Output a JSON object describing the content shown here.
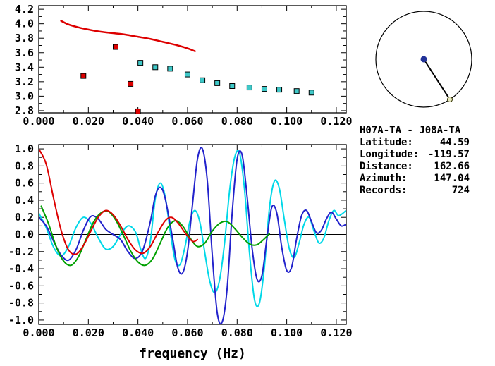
{
  "info_panel": {
    "station_pair": "H07A-TA - J08A-TA",
    "fields": [
      {
        "label": "Latitude:",
        "value": "44.59"
      },
      {
        "label": "Longitude:",
        "value": "-119.57"
      },
      {
        "label": "Distance:",
        "value": "162.66"
      },
      {
        "label": "Azimuth:",
        "value": "147.04"
      },
      {
        "label": "Records:",
        "value": "724"
      }
    ]
  },
  "compass": {
    "azimuth_deg": 147.04,
    "center_color": "#223399",
    "edge_fill": "#e8e8c0",
    "edge_stroke": "#333300",
    "line_color": "#000000"
  },
  "colors": {
    "red": "#dd0000",
    "green": "#00a000",
    "dark_blue": "#2222cc",
    "bright_cyan": "#00d8e8",
    "teal_marker": "#3fc8c8",
    "axis": "#000000",
    "background": "#ffffff"
  },
  "chart_data": [
    {
      "id": "dispersion",
      "type": "line+scatter",
      "title": "",
      "xlabel": "",
      "ylabel": "",
      "xlim": [
        0,
        0.124
      ],
      "ylim": [
        2.77,
        4.25
      ],
      "xticks": [
        0,
        0.02,
        0.04,
        0.06,
        0.08,
        0.1,
        0.12
      ],
      "xtick_labels": [
        "0.000",
        "0.020",
        "0.040",
        "0.060",
        "0.080",
        "0.100",
        "0.120"
      ],
      "yticks": [
        2.8,
        3.0,
        3.2,
        3.4,
        3.6,
        3.8,
        4.0,
        4.2
      ],
      "ytick_labels": [
        "2.8",
        "3.0",
        "3.2",
        "3.4",
        "3.6",
        "3.8",
        "4.0",
        "4.2"
      ],
      "zero_line": false,
      "series": [
        {
          "name": "reference-dispersion-curve",
          "type": "line",
          "color": "#dd0000",
          "width": 2.5,
          "points": [
            [
              0.009,
              4.04
            ],
            [
              0.012,
              3.99
            ],
            [
              0.016,
              3.95
            ],
            [
              0.02,
              3.92
            ],
            [
              0.025,
              3.89
            ],
            [
              0.03,
              3.87
            ],
            [
              0.035,
              3.85
            ],
            [
              0.04,
              3.82
            ],
            [
              0.045,
              3.79
            ],
            [
              0.05,
              3.75
            ],
            [
              0.055,
              3.71
            ],
            [
              0.06,
              3.66
            ],
            [
              0.063,
              3.62
            ]
          ]
        },
        {
          "name": "rejected-picks",
          "type": "scatter",
          "color": "#dd0000",
          "points": [
            [
              0.018,
              3.28
            ],
            [
              0.031,
              3.68
            ],
            [
              0.037,
              3.17
            ],
            [
              0.04,
              2.79
            ]
          ]
        },
        {
          "name": "accepted-picks",
          "type": "scatter",
          "color": "#3fc8c8",
          "points": [
            [
              0.041,
              3.46
            ],
            [
              0.047,
              3.4
            ],
            [
              0.053,
              3.38
            ],
            [
              0.06,
              3.3
            ],
            [
              0.066,
              3.22
            ],
            [
              0.072,
              3.18
            ],
            [
              0.078,
              3.14
            ],
            [
              0.085,
              3.12
            ],
            [
              0.091,
              3.1
            ],
            [
              0.097,
              3.09
            ],
            [
              0.104,
              3.07
            ],
            [
              0.11,
              3.05
            ]
          ]
        }
      ]
    },
    {
      "id": "spectra",
      "type": "line",
      "title": "",
      "xlabel": "frequency (Hz)",
      "ylabel": "",
      "xlim": [
        0,
        0.124
      ],
      "ylim": [
        -1.05,
        1.05
      ],
      "xticks": [
        0,
        0.02,
        0.04,
        0.06,
        0.08,
        0.1,
        0.12
      ],
      "xtick_labels": [
        "0.000",
        "0.020",
        "0.040",
        "0.060",
        "0.080",
        "0.100",
        "0.120"
      ],
      "yticks": [
        -1.0,
        -0.8,
        -0.6,
        -0.4,
        -0.2,
        0.0,
        0.2,
        0.4,
        0.6,
        0.8,
        1.0
      ],
      "ytick_labels": [
        "-1.0",
        "-0.8",
        "-0.6",
        "-0.4",
        "-0.2",
        "0.0",
        "0.2",
        "0.4",
        "0.6",
        "0.8",
        "1.0"
      ],
      "zero_line": true,
      "series": [
        {
          "name": "cyan-trace",
          "type": "line",
          "color": "#00d8e8",
          "width": 2,
          "points": [
            [
              0,
              0.25
            ],
            [
              0.003,
              0.08
            ],
            [
              0.006,
              -0.15
            ],
            [
              0.009,
              -0.25
            ],
            [
              0.012,
              -0.14
            ],
            [
              0.015,
              0.08
            ],
            [
              0.018,
              0.2
            ],
            [
              0.021,
              0.13
            ],
            [
              0.024,
              -0.04
            ],
            [
              0.027,
              -0.17
            ],
            [
              0.03,
              -0.14
            ],
            [
              0.033,
              0
            ],
            [
              0.036,
              0.1
            ],
            [
              0.039,
              0.03
            ],
            [
              0.041,
              -0.16
            ],
            [
              0.043,
              -0.28
            ],
            [
              0.045,
              -0.08
            ],
            [
              0.047,
              0.42
            ],
            [
              0.049,
              0.6
            ],
            [
              0.051,
              0.44
            ],
            [
              0.053,
              0.04
            ],
            [
              0.055,
              -0.3
            ],
            [
              0.057,
              -0.35
            ],
            [
              0.059,
              -0.14
            ],
            [
              0.061,
              0.16
            ],
            [
              0.063,
              0.28
            ],
            [
              0.065,
              0.14
            ],
            [
              0.067,
              -0.22
            ],
            [
              0.069,
              -0.55
            ],
            [
              0.071,
              -0.68
            ],
            [
              0.073,
              -0.52
            ],
            [
              0.075,
              -0.08
            ],
            [
              0.077,
              0.52
            ],
            [
              0.079,
              0.9
            ],
            [
              0.081,
              0.95
            ],
            [
              0.083,
              0.52
            ],
            [
              0.085,
              -0.22
            ],
            [
              0.087,
              -0.76
            ],
            [
              0.089,
              -0.8
            ],
            [
              0.091,
              -0.38
            ],
            [
              0.093,
              0.3
            ],
            [
              0.095,
              0.62
            ],
            [
              0.097,
              0.54
            ],
            [
              0.099,
              0.18
            ],
            [
              0.101,
              -0.16
            ],
            [
              0.103,
              -0.27
            ],
            [
              0.105,
              -0.1
            ],
            [
              0.107,
              0.12
            ],
            [
              0.109,
              0.2
            ],
            [
              0.111,
              0.04
            ],
            [
              0.113,
              -0.1
            ],
            [
              0.115,
              -0.04
            ],
            [
              0.117,
              0.16
            ],
            [
              0.119,
              0.28
            ],
            [
              0.121,
              0.22
            ],
            [
              0.124,
              0.28
            ]
          ]
        },
        {
          "name": "blue-trace",
          "type": "line",
          "color": "#2222cc",
          "width": 2,
          "points": [
            [
              0,
              0.2
            ],
            [
              0.003,
              0.1
            ],
            [
              0.006,
              -0.08
            ],
            [
              0.009,
              -0.24
            ],
            [
              0.012,
              -0.3
            ],
            [
              0.015,
              -0.18
            ],
            [
              0.018,
              0.05
            ],
            [
              0.021,
              0.21
            ],
            [
              0.024,
              0.18
            ],
            [
              0.027,
              0.06
            ],
            [
              0.03,
              0
            ],
            [
              0.033,
              -0.06
            ],
            [
              0.036,
              -0.2
            ],
            [
              0.039,
              -0.28
            ],
            [
              0.042,
              -0.18
            ],
            [
              0.045,
              0.15
            ],
            [
              0.047,
              0.45
            ],
            [
              0.049,
              0.55
            ],
            [
              0.051,
              0.42
            ],
            [
              0.054,
              -0.05
            ],
            [
              0.056,
              -0.38
            ],
            [
              0.058,
              -0.45
            ],
            [
              0.06,
              -0.2
            ],
            [
              0.062,
              0.35
            ],
            [
              0.064,
              0.88
            ],
            [
              0.066,
              1.0
            ],
            [
              0.068,
              0.62
            ],
            [
              0.07,
              -0.25
            ],
            [
              0.072,
              -0.92
            ],
            [
              0.074,
              -1.02
            ],
            [
              0.076,
              -0.62
            ],
            [
              0.078,
              0.25
            ],
            [
              0.08,
              0.88
            ],
            [
              0.082,
              0.93
            ],
            [
              0.084,
              0.45
            ],
            [
              0.086,
              -0.15
            ],
            [
              0.088,
              -0.52
            ],
            [
              0.09,
              -0.48
            ],
            [
              0.092,
              -0.05
            ],
            [
              0.094,
              0.32
            ],
            [
              0.096,
              0.25
            ],
            [
              0.098,
              -0.15
            ],
            [
              0.1,
              -0.42
            ],
            [
              0.102,
              -0.38
            ],
            [
              0.104,
              -0.05
            ],
            [
              0.106,
              0.22
            ],
            [
              0.108,
              0.28
            ],
            [
              0.11,
              0.15
            ],
            [
              0.112,
              0.02
            ],
            [
              0.114,
              0.05
            ],
            [
              0.116,
              0.18
            ],
            [
              0.118,
              0.26
            ],
            [
              0.12,
              0.18
            ],
            [
              0.122,
              0.1
            ],
            [
              0.124,
              0.12
            ]
          ]
        },
        {
          "name": "green-trace",
          "type": "line",
          "color": "#00a000",
          "width": 2,
          "points": [
            [
              0.001,
              0.33
            ],
            [
              0.004,
              0.12
            ],
            [
              0.007,
              -0.14
            ],
            [
              0.01,
              -0.31
            ],
            [
              0.013,
              -0.36
            ],
            [
              0.016,
              -0.26
            ],
            [
              0.019,
              -0.06
            ],
            [
              0.022,
              0.14
            ],
            [
              0.025,
              0.25
            ],
            [
              0.028,
              0.27
            ],
            [
              0.031,
              0.17
            ],
            [
              0.034,
              0
            ],
            [
              0.037,
              -0.19
            ],
            [
              0.04,
              -0.32
            ],
            [
              0.043,
              -0.36
            ],
            [
              0.046,
              -0.28
            ],
            [
              0.049,
              -0.1
            ],
            [
              0.052,
              0.08
            ],
            [
              0.055,
              0.16
            ],
            [
              0.058,
              0.1
            ],
            [
              0.061,
              -0.04
            ],
            [
              0.064,
              -0.14
            ],
            [
              0.067,
              -0.1
            ],
            [
              0.07,
              0.04
            ],
            [
              0.073,
              0.13
            ],
            [
              0.076,
              0.15
            ],
            [
              0.079,
              0.07
            ],
            [
              0.082,
              -0.03
            ],
            [
              0.085,
              -0.11
            ],
            [
              0.088,
              -0.12
            ],
            [
              0.091,
              -0.05
            ],
            [
              0.093,
              0.01
            ]
          ]
        },
        {
          "name": "red-trace",
          "type": "line",
          "color": "#dd0000",
          "width": 2,
          "points": [
            [
              0,
              1.0
            ],
            [
              0.003,
              0.82
            ],
            [
              0.006,
              0.42
            ],
            [
              0.009,
              0.05
            ],
            [
              0.012,
              -0.18
            ],
            [
              0.015,
              -0.23
            ],
            [
              0.018,
              -0.13
            ],
            [
              0.021,
              0.04
            ],
            [
              0.024,
              0.2
            ],
            [
              0.027,
              0.28
            ],
            [
              0.03,
              0.23
            ],
            [
              0.033,
              0.1
            ],
            [
              0.036,
              -0.06
            ],
            [
              0.039,
              -0.18
            ],
            [
              0.042,
              -0.22
            ],
            [
              0.045,
              -0.14
            ],
            [
              0.048,
              0.02
            ],
            [
              0.051,
              0.16
            ],
            [
              0.0535,
              0.2
            ],
            [
              0.056,
              0.14
            ],
            [
              0.059,
              0.02
            ],
            [
              0.062,
              -0.08
            ],
            [
              0.064,
              -0.06
            ]
          ]
        }
      ]
    }
  ]
}
